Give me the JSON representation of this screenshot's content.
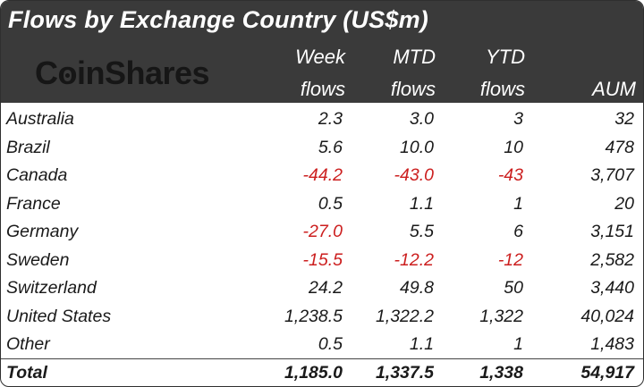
{
  "title": "Flows by Exchange Country (US$m)",
  "logo": {
    "text_before": "C",
    "text_o": "o",
    "text_after": "inShares"
  },
  "columns": {
    "week": [
      "Week",
      "flows"
    ],
    "mtd": [
      "MTD",
      "flows"
    ],
    "ytd": [
      "YTD",
      "flows"
    ],
    "aum": "AUM"
  },
  "rows": [
    {
      "country": "Australia",
      "week": "2.3",
      "mtd": "3.0",
      "ytd": "3",
      "aum": "32"
    },
    {
      "country": "Brazil",
      "week": "5.6",
      "mtd": "10.0",
      "ytd": "10",
      "aum": "478"
    },
    {
      "country": "Canada",
      "week": "-44.2",
      "mtd": "-43.0",
      "ytd": "-43",
      "aum": "3,707"
    },
    {
      "country": "France",
      "week": "0.5",
      "mtd": "1.1",
      "ytd": "1",
      "aum": "20"
    },
    {
      "country": "Germany",
      "week": "-27.0",
      "mtd": "5.5",
      "ytd": "6",
      "aum": "3,151"
    },
    {
      "country": "Sweden",
      "week": "-15.5",
      "mtd": "-12.2",
      "ytd": "-12",
      "aum": "2,582"
    },
    {
      "country": "Switzerland",
      "week": "24.2",
      "mtd": "49.8",
      "ytd": "50",
      "aum": "3,440"
    },
    {
      "country": "United States",
      "week": "1,238.5",
      "mtd": "1,322.2",
      "ytd": "1,322",
      "aum": "40,024"
    },
    {
      "country": "Other",
      "week": "0.5",
      "mtd": "1.1",
      "ytd": "1",
      "aum": "1,483"
    }
  ],
  "total": {
    "country": "Total",
    "week": "1,185.0",
    "mtd": "1,337.5",
    "ytd": "1,338",
    "aum": "54,917"
  },
  "colors": {
    "header_bg": "#3a3a3a",
    "header_text": "#ffffff",
    "negative": "#cc1f1f",
    "text": "#1a1a1a"
  }
}
